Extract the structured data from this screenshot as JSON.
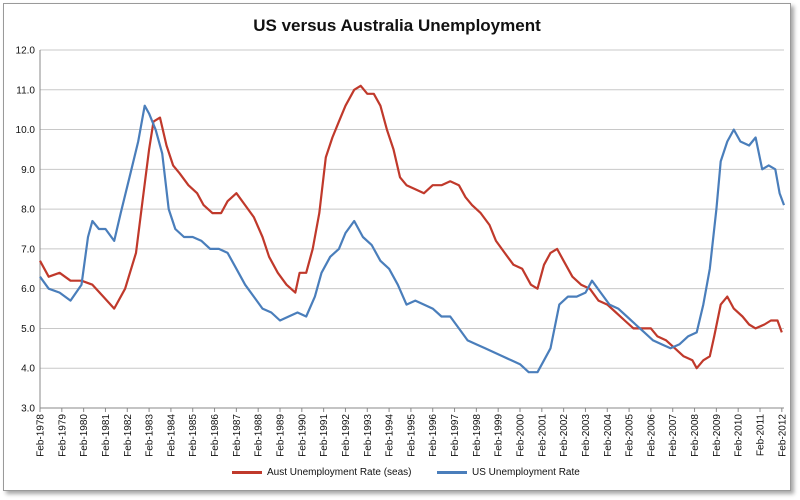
{
  "chart_data": {
    "type": "line",
    "title": "US versus Australia Unemployment",
    "xlabel": "",
    "ylabel": "",
    "ylim": [
      3.0,
      12.0
    ],
    "y_ticks": [
      "3.0",
      "4.0",
      "5.0",
      "6.0",
      "7.0",
      "8.0",
      "9.0",
      "10.0",
      "11.0",
      "12.0"
    ],
    "x_ticks": [
      "Feb-1978",
      "Feb-1979",
      "Feb-1980",
      "Feb-1981",
      "Feb-1982",
      "Feb-1983",
      "Feb-1984",
      "Feb-1985",
      "Feb-1986",
      "Feb-1987",
      "Feb-1988",
      "Feb-1989",
      "Feb-1990",
      "Feb-1991",
      "Feb-1992",
      "Feb-1993",
      "Feb-1994",
      "Feb-1995",
      "Feb-1996",
      "Feb-1997",
      "Feb-1998",
      "Feb-1999",
      "Feb-2000",
      "Feb-2001",
      "Feb-2002",
      "Feb-2003",
      "Feb-2004",
      "Feb-2005",
      "Feb-2006",
      "Feb-2007",
      "Feb-2008",
      "Feb-2009",
      "Feb-2010",
      "Feb-2011",
      "Feb-2012"
    ],
    "grid": "horizontal",
    "legend_position": "bottom",
    "series": [
      {
        "name": "Aust Unemployment Rate (seas)",
        "color": "#c0392b",
        "points": [
          [
            1978.1,
            6.7
          ],
          [
            1978.5,
            6.3
          ],
          [
            1979.0,
            6.4
          ],
          [
            1979.5,
            6.2
          ],
          [
            1980.0,
            6.2
          ],
          [
            1980.5,
            6.1
          ],
          [
            1981.0,
            5.8
          ],
          [
            1981.5,
            5.5
          ],
          [
            1982.0,
            6.0
          ],
          [
            1982.5,
            6.9
          ],
          [
            1982.8,
            8.2
          ],
          [
            1983.1,
            9.5
          ],
          [
            1983.3,
            10.2
          ],
          [
            1983.6,
            10.3
          ],
          [
            1983.9,
            9.6
          ],
          [
            1984.2,
            9.1
          ],
          [
            1984.5,
            8.9
          ],
          [
            1984.9,
            8.6
          ],
          [
            1985.3,
            8.4
          ],
          [
            1985.6,
            8.1
          ],
          [
            1986.0,
            7.9
          ],
          [
            1986.4,
            7.9
          ],
          [
            1986.7,
            8.2
          ],
          [
            1987.1,
            8.4
          ],
          [
            1987.5,
            8.1
          ],
          [
            1987.9,
            7.8
          ],
          [
            1988.3,
            7.3
          ],
          [
            1988.6,
            6.8
          ],
          [
            1989.0,
            6.4
          ],
          [
            1989.4,
            6.1
          ],
          [
            1989.8,
            5.9
          ],
          [
            1990.0,
            6.4
          ],
          [
            1990.3,
            6.4
          ],
          [
            1990.6,
            7.0
          ],
          [
            1990.9,
            7.9
          ],
          [
            1991.2,
            9.3
          ],
          [
            1991.5,
            9.8
          ],
          [
            1991.8,
            10.2
          ],
          [
            1992.1,
            10.6
          ],
          [
            1992.5,
            11.0
          ],
          [
            1992.8,
            11.1
          ],
          [
            1993.1,
            10.9
          ],
          [
            1993.4,
            10.9
          ],
          [
            1993.7,
            10.6
          ],
          [
            1994.0,
            10.0
          ],
          [
            1994.3,
            9.5
          ],
          [
            1994.6,
            8.8
          ],
          [
            1994.9,
            8.6
          ],
          [
            1995.3,
            8.5
          ],
          [
            1995.7,
            8.4
          ],
          [
            1996.1,
            8.6
          ],
          [
            1996.5,
            8.6
          ],
          [
            1996.9,
            8.7
          ],
          [
            1997.3,
            8.6
          ],
          [
            1997.6,
            8.3
          ],
          [
            1997.9,
            8.1
          ],
          [
            1998.3,
            7.9
          ],
          [
            1998.7,
            7.6
          ],
          [
            1999.0,
            7.2
          ],
          [
            1999.4,
            6.9
          ],
          [
            1999.8,
            6.6
          ],
          [
            2000.2,
            6.5
          ],
          [
            2000.6,
            6.1
          ],
          [
            2000.9,
            6.0
          ],
          [
            2001.2,
            6.6
          ],
          [
            2001.5,
            6.9
          ],
          [
            2001.8,
            7.0
          ],
          [
            2002.1,
            6.7
          ],
          [
            2002.5,
            6.3
          ],
          [
            2002.9,
            6.1
          ],
          [
            2003.3,
            6.0
          ],
          [
            2003.7,
            5.7
          ],
          [
            2004.1,
            5.6
          ],
          [
            2004.5,
            5.4
          ],
          [
            2004.9,
            5.2
          ],
          [
            2005.3,
            5.0
          ],
          [
            2005.7,
            5.0
          ],
          [
            2006.1,
            5.0
          ],
          [
            2006.4,
            4.8
          ],
          [
            2006.8,
            4.7
          ],
          [
            2007.2,
            4.5
          ],
          [
            2007.6,
            4.3
          ],
          [
            2008.0,
            4.2
          ],
          [
            2008.2,
            4.0
          ],
          [
            2008.5,
            4.2
          ],
          [
            2008.8,
            4.3
          ],
          [
            2009.0,
            4.8
          ],
          [
            2009.3,
            5.6
          ],
          [
            2009.6,
            5.8
          ],
          [
            2009.9,
            5.5
          ],
          [
            2010.3,
            5.3
          ],
          [
            2010.6,
            5.1
          ],
          [
            2010.9,
            5.0
          ],
          [
            2011.3,
            5.1
          ],
          [
            2011.6,
            5.2
          ],
          [
            2011.9,
            5.2
          ],
          [
            2012.1,
            4.9
          ]
        ]
      },
      {
        "name": "US Unemployment Rate",
        "color": "#4a7ebb",
        "points": [
          [
            1978.1,
            6.3
          ],
          [
            1978.5,
            6.0
          ],
          [
            1979.0,
            5.9
          ],
          [
            1979.5,
            5.7
          ],
          [
            1980.0,
            6.1
          ],
          [
            1980.3,
            7.3
          ],
          [
            1980.5,
            7.7
          ],
          [
            1980.8,
            7.5
          ],
          [
            1981.1,
            7.5
          ],
          [
            1981.5,
            7.2
          ],
          [
            1981.8,
            7.9
          ],
          [
            1982.2,
            8.8
          ],
          [
            1982.6,
            9.7
          ],
          [
            1982.9,
            10.6
          ],
          [
            1983.1,
            10.4
          ],
          [
            1983.4,
            10.0
          ],
          [
            1983.7,
            9.4
          ],
          [
            1984.0,
            8.0
          ],
          [
            1984.3,
            7.5
          ],
          [
            1984.7,
            7.3
          ],
          [
            1985.1,
            7.3
          ],
          [
            1985.5,
            7.2
          ],
          [
            1985.9,
            7.0
          ],
          [
            1986.3,
            7.0
          ],
          [
            1986.7,
            6.9
          ],
          [
            1987.1,
            6.5
          ],
          [
            1987.5,
            6.1
          ],
          [
            1987.9,
            5.8
          ],
          [
            1988.3,
            5.5
          ],
          [
            1988.7,
            5.4
          ],
          [
            1989.1,
            5.2
          ],
          [
            1989.5,
            5.3
          ],
          [
            1989.9,
            5.4
          ],
          [
            1990.3,
            5.3
          ],
          [
            1990.7,
            5.8
          ],
          [
            1991.0,
            6.4
          ],
          [
            1991.4,
            6.8
          ],
          [
            1991.8,
            7.0
          ],
          [
            1992.1,
            7.4
          ],
          [
            1992.5,
            7.7
          ],
          [
            1992.9,
            7.3
          ],
          [
            1993.3,
            7.1
          ],
          [
            1993.7,
            6.7
          ],
          [
            1994.1,
            6.5
          ],
          [
            1994.5,
            6.1
          ],
          [
            1994.9,
            5.6
          ],
          [
            1995.3,
            5.7
          ],
          [
            1995.7,
            5.6
          ],
          [
            1996.1,
            5.5
          ],
          [
            1996.5,
            5.3
          ],
          [
            1996.9,
            5.3
          ],
          [
            1997.3,
            5.0
          ],
          [
            1997.7,
            4.7
          ],
          [
            1998.1,
            4.6
          ],
          [
            1998.5,
            4.5
          ],
          [
            1998.9,
            4.4
          ],
          [
            1999.3,
            4.3
          ],
          [
            1999.7,
            4.2
          ],
          [
            2000.1,
            4.1
          ],
          [
            2000.5,
            3.9
          ],
          [
            2000.9,
            3.9
          ],
          [
            2001.2,
            4.2
          ],
          [
            2001.5,
            4.5
          ],
          [
            2001.9,
            5.6
          ],
          [
            2002.3,
            5.8
          ],
          [
            2002.7,
            5.8
          ],
          [
            2003.1,
            5.9
          ],
          [
            2003.4,
            6.2
          ],
          [
            2003.8,
            5.9
          ],
          [
            2004.2,
            5.6
          ],
          [
            2004.6,
            5.5
          ],
          [
            2005.0,
            5.3
          ],
          [
            2005.4,
            5.1
          ],
          [
            2005.8,
            4.9
          ],
          [
            2006.2,
            4.7
          ],
          [
            2006.6,
            4.6
          ],
          [
            2007.0,
            4.5
          ],
          [
            2007.4,
            4.6
          ],
          [
            2007.8,
            4.8
          ],
          [
            2008.2,
            4.9
          ],
          [
            2008.5,
            5.6
          ],
          [
            2008.8,
            6.5
          ],
          [
            2009.1,
            8.0
          ],
          [
            2009.3,
            9.2
          ],
          [
            2009.6,
            9.7
          ],
          [
            2009.9,
            10.0
          ],
          [
            2010.2,
            9.7
          ],
          [
            2010.6,
            9.6
          ],
          [
            2010.9,
            9.8
          ],
          [
            2011.2,
            9.0
          ],
          [
            2011.5,
            9.1
          ],
          [
            2011.8,
            9.0
          ],
          [
            2012.0,
            8.4
          ],
          [
            2012.2,
            8.1
          ]
        ]
      }
    ]
  }
}
